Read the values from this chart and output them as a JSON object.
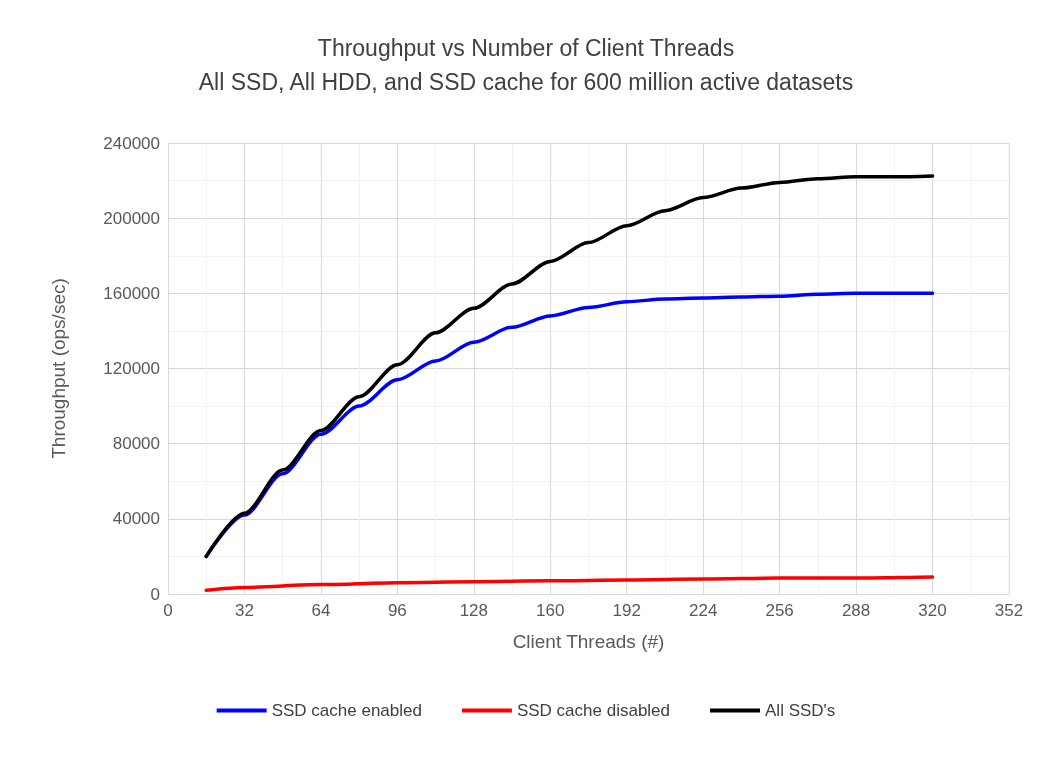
{
  "chart_data": {
    "type": "line",
    "title": "Throughput vs Number of Client Threads\nAll SSD, All HDD, and SSD cache for 600 million active datasets",
    "xlabel": "Client Threads (#)",
    "ylabel": "Throughput (ops/sec)",
    "x": [
      16,
      32,
      48,
      64,
      80,
      96,
      112,
      128,
      144,
      160,
      176,
      192,
      208,
      224,
      240,
      256,
      272,
      288,
      304,
      320
    ],
    "series": [
      {
        "name": "SSD cache enabled",
        "color": "#0000ff",
        "values": [
          20000,
          42000,
          64000,
          85000,
          100000,
          114000,
          124000,
          134000,
          142000,
          148000,
          152500,
          155500,
          157000,
          157500,
          158000,
          158500,
          159500,
          160000,
          160000,
          160000
        ]
      },
      {
        "name": "SSD cache disabled",
        "color": "#ff0000",
        "x": [
          16,
          32,
          64,
          96,
          128,
          160,
          192,
          224,
          256,
          288,
          320
        ],
        "values": [
          2000,
          3500,
          5000,
          6000,
          6500,
          7000,
          7500,
          8000,
          8500,
          8500,
          9000
        ]
      },
      {
        "name": "All SSD's",
        "color": "#000000",
        "values": [
          20000,
          43000,
          66000,
          87000,
          105000,
          122000,
          139000,
          152000,
          165000,
          177000,
          187000,
          196000,
          204000,
          211000,
          216000,
          219000,
          221000,
          222000,
          222000,
          222500
        ]
      }
    ],
    "xlim": [
      0,
      352
    ],
    "xticks": [
      0,
      32,
      64,
      96,
      128,
      160,
      192,
      224,
      256,
      288,
      320,
      352
    ],
    "ylim": [
      0,
      240000
    ],
    "yticks": [
      0,
      40000,
      80000,
      120000,
      160000,
      200000,
      240000
    ],
    "grid": true,
    "legend": "bottom",
    "marker": "none",
    "line_style": "solid"
  }
}
